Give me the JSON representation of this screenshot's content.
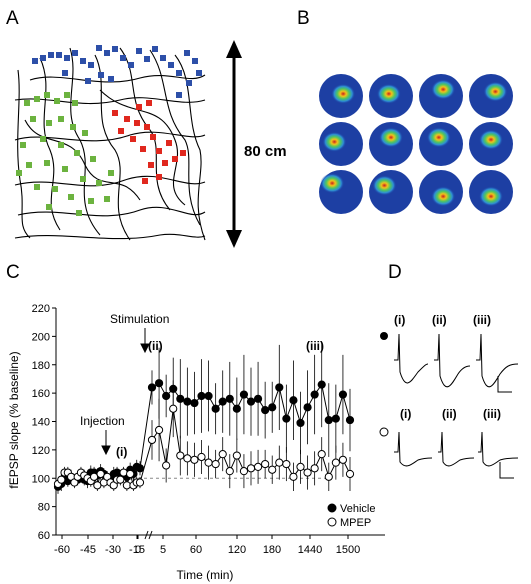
{
  "panels": {
    "a": "A",
    "b": "B",
    "c": "C",
    "d": "D"
  },
  "scale_label": "80 cm",
  "colors": {
    "blue_fields": "#2d4fa8",
    "green_fields": "#6cb33f",
    "red_fields": "#e0281e",
    "heatmap_background": "#1d3fa3"
  },
  "heatmap_grid": {
    "rows": 3,
    "cols": 4
  },
  "trace_labels": {
    "top": [
      "(i)",
      "(ii)",
      "(iii)"
    ],
    "bottom": [
      "(i)",
      "(ii)",
      "(iii)"
    ]
  },
  "chart_data": {
    "type": "scatter",
    "ylabel": "fEPSP slope (% baseline)",
    "xlabel": "Time (min)",
    "ylim": [
      60,
      220
    ],
    "yticks": [
      60,
      80,
      100,
      120,
      140,
      160,
      180,
      200,
      220
    ],
    "xtick_labels": [
      "-60",
      "-45",
      "-30",
      "-15",
      "5",
      "60",
      "120",
      "180",
      "1440",
      "1500"
    ],
    "axis_break_label": "0",
    "annotations": {
      "injection": "Injection",
      "stimulation": "Stimulation",
      "i": "(i)",
      "ii": "(ii)",
      "iii": "(iii)"
    },
    "legend_position": "bottom-right",
    "series": [
      {
        "name": "Vehicle",
        "marker": "filled-circle",
        "values": [
          94,
          96,
          100,
          98,
          101,
          98,
          99,
          102,
          99,
          98,
          104,
          104,
          102,
          105,
          103,
          100,
          99,
          103,
          104,
          100,
          102,
          101,
          106,
          103,
          108,
          107,
          164,
          167,
          158,
          163,
          156,
          154,
          153,
          158,
          158,
          149,
          154,
          156,
          149,
          159,
          154,
          156,
          148,
          150,
          164,
          142,
          155,
          139,
          150,
          159,
          166,
          141,
          142,
          159,
          141
        ],
        "errors": [
          5,
          5,
          4,
          4,
          5,
          4,
          4,
          5,
          4,
          5,
          5,
          4,
          5,
          5,
          4,
          4,
          4,
          5,
          4,
          4,
          5,
          4,
          5,
          5,
          5,
          5,
          12,
          25,
          15,
          22,
          28,
          24,
          22,
          26,
          25,
          18,
          22,
          26,
          22,
          28,
          24,
          26,
          20,
          18,
          30,
          24,
          28,
          22,
          26,
          28,
          30,
          26,
          24,
          28,
          22
        ]
      },
      {
        "name": "MPEP",
        "marker": "open-circle",
        "values": [
          96,
          99,
          104,
          104,
          101,
          97,
          101,
          104,
          102,
          100,
          98,
          101,
          95,
          103,
          97,
          101,
          97,
          95,
          99,
          99,
          104,
          95,
          103,
          95,
          97,
          97,
          127,
          134,
          109,
          149,
          116,
          114,
          113,
          115,
          111,
          110,
          117,
          105,
          116,
          105,
          107,
          108,
          110,
          106,
          111,
          110,
          101,
          108,
          104,
          107,
          117,
          101,
          111,
          113,
          103
        ],
        "errors": [
          4,
          4,
          4,
          4,
          4,
          4,
          4,
          4,
          4,
          4,
          4,
          4,
          4,
          4,
          4,
          4,
          4,
          4,
          4,
          4,
          4,
          4,
          4,
          4,
          4,
          4,
          14,
          22,
          12,
          20,
          14,
          12,
          12,
          12,
          12,
          10,
          12,
          12,
          12,
          12,
          12,
          12,
          10,
          10,
          12,
          12,
          10,
          12,
          12,
          12,
          12,
          10,
          12,
          12,
          12
        ]
      }
    ]
  }
}
